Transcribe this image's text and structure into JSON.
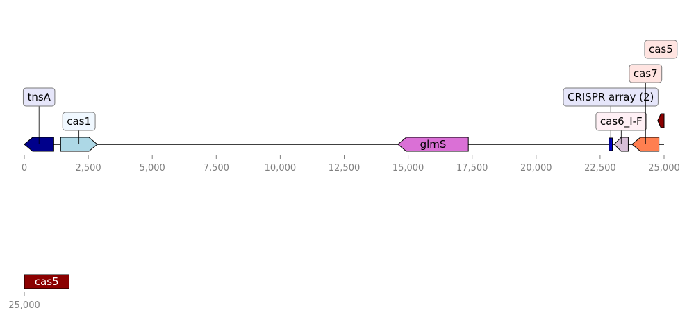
{
  "chart_data": {
    "type": "genome-map",
    "tracks": [
      {
        "name": "",
        "range": [
          0,
          25000
        ],
        "ticks": [
          0,
          2500,
          5000,
          7500,
          10000,
          12500,
          15000,
          17500,
          20000,
          22500,
          25000
        ],
        "tick_labels": [
          "0",
          "2,500",
          "5,000",
          "7,500",
          "10,000",
          "12,500",
          "15,000",
          "17,500",
          "20,000",
          "22,500",
          "25,000"
        ],
        "features": [
          {
            "id": "tnsA",
            "label": "tnsA",
            "start": 0,
            "end": 1150,
            "strand": -1,
            "color": "#00008b",
            "label_mode": "box",
            "label_level": 2,
            "box_color": "#e6e6fa"
          },
          {
            "id": "cas1",
            "label": "cas1",
            "start": 1420,
            "end": 2850,
            "strand": 1,
            "color": "#add8e6",
            "label_mode": "box",
            "label_level": 1,
            "box_color": "#f0f8ff"
          },
          {
            "id": "glmS",
            "label": "glmS",
            "start": 14600,
            "end": 17350,
            "strand": -1,
            "color": "#da70d6",
            "label_mode": "inline",
            "text_color": "#000000"
          },
          {
            "id": "crispr",
            "label": "CRISPR array (2)",
            "start": 22850,
            "end": 22980,
            "strand": 0,
            "color": "#0000cd",
            "label_mode": "box",
            "label_level": 2,
            "box_color": "#e6e6fa"
          },
          {
            "id": "cas6",
            "label": "cas6_I-F",
            "start": 23050,
            "end": 23600,
            "strand": -1,
            "color": "#d8bfd8",
            "label_mode": "box",
            "label_level": 1,
            "box_color": "#fff0f5"
          },
          {
            "id": "cas7",
            "label": "cas7",
            "start": 23750,
            "end": 24800,
            "strand": -1,
            "color": "#ff7f50",
            "label_mode": "box",
            "label_level": 3,
            "box_color": "#ffe4e1"
          },
          {
            "id": "cas5a",
            "label": "cas5",
            "start": 24750,
            "end": 25000,
            "strand": -1,
            "color": "#8b0000",
            "label_mode": "box",
            "label_level": 4,
            "box_color": "#ffe4e1",
            "elevated": true
          }
        ]
      },
      {
        "name": "",
        "range": [
          25000,
          26800
        ],
        "ticks": [
          25000
        ],
        "tick_labels": [
          "25,000"
        ],
        "features": [
          {
            "id": "cas5b",
            "label": "cas5",
            "start": 25000,
            "end": 26750,
            "strand": 0,
            "color": "#8b0000",
            "label_mode": "inline",
            "text_color": "#ffffff"
          }
        ]
      }
    ]
  }
}
